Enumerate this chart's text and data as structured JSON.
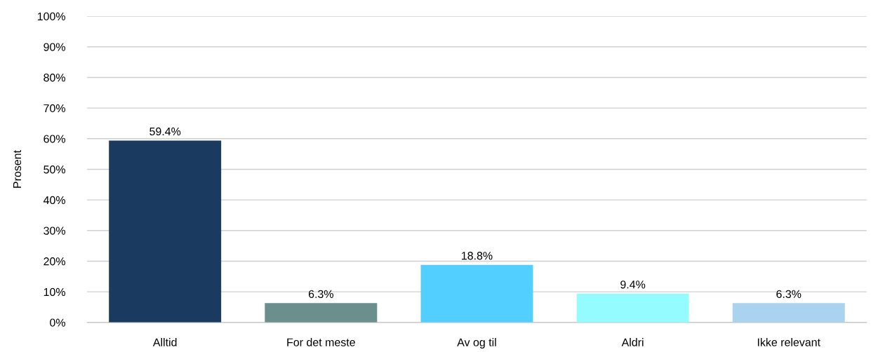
{
  "chart_data": {
    "type": "bar",
    "ylabel": "Prosent",
    "categories": [
      "Alltid",
      "For det meste",
      "Av og til",
      "Aldri",
      "Ikke relevant"
    ],
    "values": [
      59.4,
      6.3,
      18.8,
      9.4,
      6.3
    ],
    "colors": [
      "#1a3a5f",
      "#6a8f8c",
      "#52cfff",
      "#94fbff",
      "#a9d3ee"
    ],
    "value_labels": [
      "59.4%",
      "6.3%",
      "18.8%",
      "9.4%",
      "6.3%"
    ],
    "ylim": [
      0,
      100
    ],
    "yticks": [
      {
        "value": 0,
        "label": "0%"
      },
      {
        "value": 10,
        "label": "10%"
      },
      {
        "value": 20,
        "label": "20%"
      },
      {
        "value": 30,
        "label": "30%"
      },
      {
        "value": 40,
        "label": "40%"
      },
      {
        "value": 50,
        "label": "50%"
      },
      {
        "value": 60,
        "label": "60%"
      },
      {
        "value": 70,
        "label": "70%"
      },
      {
        "value": 80,
        "label": "80%"
      },
      {
        "value": 90,
        "label": "90%"
      },
      {
        "value": 100,
        "label": "100%"
      }
    ],
    "grid": "y",
    "legend": false
  }
}
